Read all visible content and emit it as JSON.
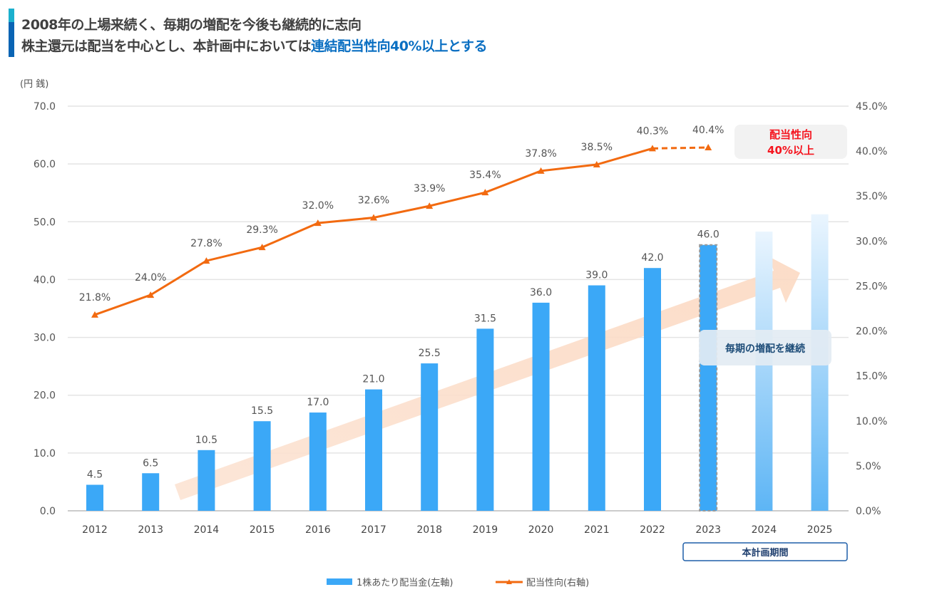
{
  "header": {
    "line1": "2008年の上場来続く、毎期の増配を今後も継続的に志向",
    "line2_prefix": "株主還元は配当を中心とし、本計画中においては",
    "line2_highlight": "連結配当性向40%以上とする"
  },
  "chart_data": {
    "type": "bar+line",
    "categories": [
      "2012",
      "2013",
      "2014",
      "2015",
      "2016",
      "2017",
      "2018",
      "2019",
      "2020",
      "2021",
      "2022",
      "2023",
      "2024",
      "2025"
    ],
    "left_axis": {
      "unit_label": "(円 銭)",
      "ylim": [
        0,
        70
      ],
      "ticks": [
        "0.0",
        "10.0",
        "20.0",
        "30.0",
        "40.0",
        "50.0",
        "60.0",
        "70.0"
      ]
    },
    "right_axis": {
      "ylim": [
        0,
        45
      ],
      "ticks": [
        "0.0%",
        "5.0%",
        "10.0%",
        "15.0%",
        "20.0%",
        "25.0%",
        "30.0%",
        "35.0%",
        "40.0%",
        "45.0%"
      ]
    },
    "grid": true,
    "series": [
      {
        "name": "1株あたり配当金(左軸)",
        "type": "bar",
        "axis": "left",
        "color": "#3BA8F7",
        "values": [
          4.5,
          6.5,
          10.5,
          15.5,
          17.0,
          21.0,
          25.5,
          31.5,
          36.0,
          39.0,
          42.0,
          46.0,
          48.3,
          51.3
        ],
        "labels": [
          "4.5",
          "6.5",
          "10.5",
          "15.5",
          "17.0",
          "21.0",
          "25.5",
          "31.5",
          "36.0",
          "39.0",
          "42.0",
          "46.0",
          "",
          ""
        ]
      },
      {
        "name": "配当性向(右軸)",
        "type": "line",
        "axis": "right",
        "color": "#F26A10",
        "values": [
          21.8,
          24.0,
          27.8,
          29.3,
          32.0,
          32.6,
          33.9,
          35.4,
          37.8,
          38.5,
          40.3,
          40.4,
          null,
          null
        ],
        "labels": [
          "21.8%",
          "24.0%",
          "27.8%",
          "29.3%",
          "32.0%",
          "32.6%",
          "33.9%",
          "35.4%",
          "37.8%",
          "38.5%",
          "40.3%",
          "40.4%",
          "",
          ""
        ]
      }
    ],
    "legend_position": "bottom",
    "annotations": {
      "payout_target": [
        "配当性向",
        "40%以上"
      ],
      "growth_arrow_label": "毎期の増配を継続",
      "plan_period_label": "本計画期間"
    }
  }
}
